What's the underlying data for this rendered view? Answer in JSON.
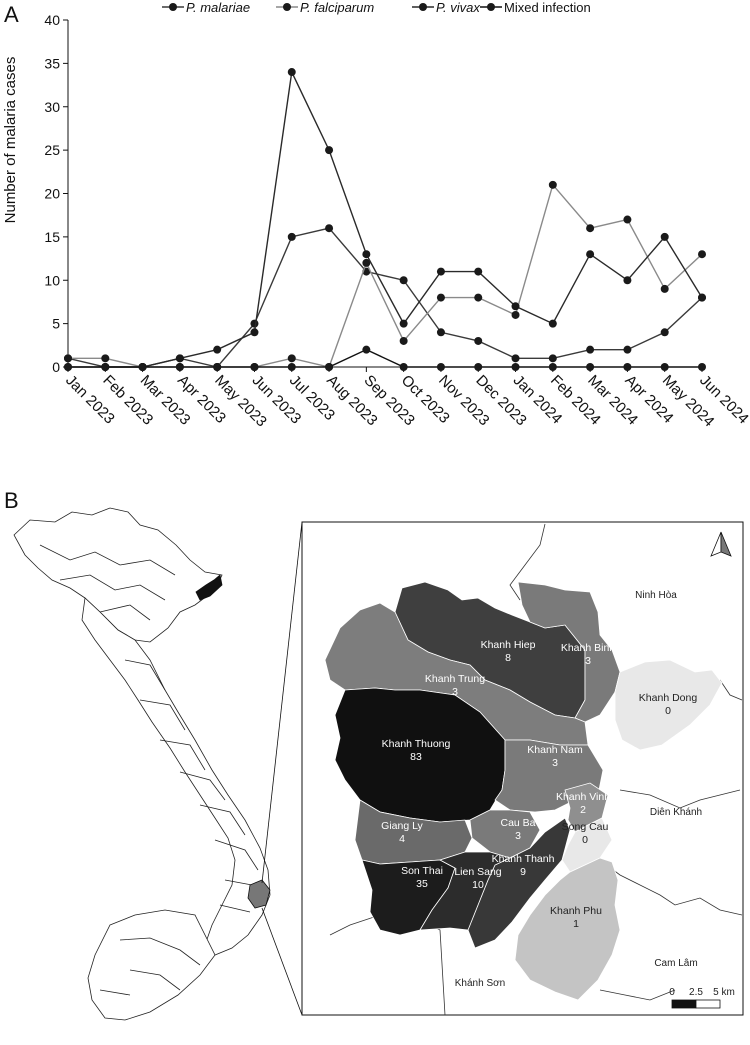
{
  "panel_labels": {
    "a": "A",
    "b": "B"
  },
  "chart_data": {
    "type": "line",
    "title": "",
    "xlabel": "",
    "ylabel": "Number of malaria cases",
    "ylim": [
      0,
      40
    ],
    "yticks": [
      0,
      5,
      10,
      15,
      20,
      25,
      30,
      35,
      40
    ],
    "categories": [
      "Jan 2023",
      "Feb 2023",
      "Mar 2023",
      "Apr 2023",
      "May 2023",
      "Jun 2023",
      "Jul 2023",
      "Aug 2023",
      "Sep 2023",
      "Oct 2023",
      "Nov 2023",
      "Dec 2023",
      "Jan 2024",
      "Feb 2024",
      "Mar 2024",
      "Apr 2024",
      "May 2024",
      "Jun 2024"
    ],
    "legend_position": "top",
    "grid": false,
    "series": [
      {
        "name": "P. malariae",
        "color": "#3a3a3a",
        "values": [
          1,
          0,
          0,
          1,
          0,
          5,
          15,
          16,
          11,
          10,
          4,
          3,
          1,
          1,
          2,
          2,
          4,
          8
        ]
      },
      {
        "name": "P. falciparum",
        "color": "#8a8a8a",
        "values": [
          1,
          1,
          0,
          0,
          0,
          0,
          1,
          0,
          12,
          3,
          8,
          8,
          6,
          21,
          16,
          17,
          9,
          13
        ]
      },
      {
        "name": "P. vivax",
        "color": "#2a2a2a",
        "values": [
          0,
          0,
          0,
          1,
          2,
          4,
          34,
          25,
          13,
          5,
          11,
          11,
          7,
          5,
          13,
          10,
          15,
          8
        ]
      },
      {
        "name": "Mixed infection",
        "color": "#111111",
        "values": [
          0,
          0,
          0,
          0,
          0,
          0,
          0,
          0,
          2,
          0,
          0,
          0,
          0,
          0,
          0,
          0,
          0,
          0
        ]
      }
    ]
  },
  "map": {
    "communes": [
      {
        "name": "Khanh Hiep",
        "value": "8",
        "fill": "#3f3f3f"
      },
      {
        "name": "Khanh Binh",
        "value": "3",
        "fill": "#7a7a7a"
      },
      {
        "name": "Khanh Trung",
        "value": "3",
        "fill": "#7d7d7d"
      },
      {
        "name": "Khanh Dong",
        "value": "0",
        "fill": "#e8e8e8"
      },
      {
        "name": "Khanh Thuong",
        "value": "83",
        "fill": "#101010"
      },
      {
        "name": "Khanh Nam",
        "value": "3",
        "fill": "#7a7a7a"
      },
      {
        "name": "Khanh Vinh",
        "value": "2",
        "fill": "#8f8f8f"
      },
      {
        "name": "Giang Ly",
        "value": "4",
        "fill": "#6a6a6a"
      },
      {
        "name": "Cau Ba",
        "value": "3",
        "fill": "#7a7a7a"
      },
      {
        "name": "Song Cau",
        "value": "0",
        "fill": "#e8e8e8"
      },
      {
        "name": "Khanh Thanh",
        "value": "9",
        "fill": "#383838"
      },
      {
        "name": "Son Thai",
        "value": "35",
        "fill": "#1c1c1c"
      },
      {
        "name": "Lien Sang",
        "value": "10",
        "fill": "#2c2c2c"
      },
      {
        "name": "Khanh Phu",
        "value": "1",
        "fill": "#c4c4c4"
      }
    ],
    "districts": [
      "Ninh Hòa",
      "Diên Khánh",
      "Cam Lâm",
      "Khánh Sơn"
    ],
    "scale_ticks": [
      "0",
      "2.5",
      "5 km"
    ],
    "north_arrow": "north-arrow-icon"
  }
}
